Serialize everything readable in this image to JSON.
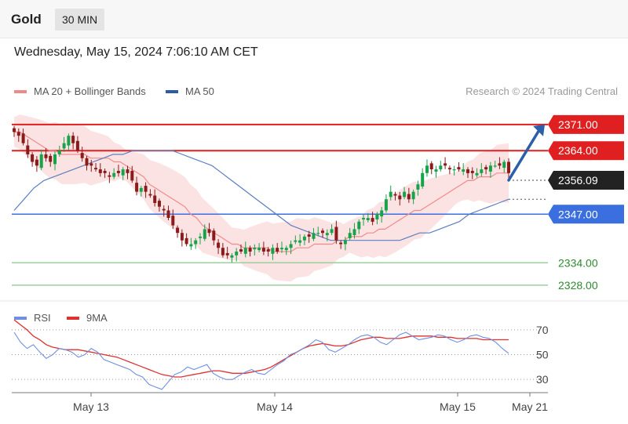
{
  "header": {
    "instrument": "Gold",
    "interval": "30 MIN"
  },
  "timestamp": "Wednesday, May 15, 2024 7:06:10 AM CET",
  "legend": {
    "ma20": {
      "label": "MA 20 + Bollinger Bands",
      "color": "#f08a8a"
    },
    "ma50": {
      "label": "MA 50",
      "color": "#2f5aa8"
    }
  },
  "credit": "Research © 2024 Trading Central",
  "rsi_legend": {
    "rsi": {
      "label": "RSI",
      "color": "#6f8fe0"
    },
    "ma9": {
      "label": "9MA",
      "color": "#e03030"
    }
  },
  "colors": {
    "up": "#16a34a",
    "down": "#8b1a1a",
    "resistance": "#e02020",
    "support": "#3b6fe0",
    "target": "#9ccf9c",
    "arrow": "#2d5fa8"
  },
  "chart_data": [
    {
      "type": "candlestick",
      "x_tick_labels": [
        "May 13",
        "May 14",
        "May 15",
        "May 21"
      ],
      "levels": [
        {
          "label": "2371.00",
          "value": 2371,
          "kind": "resistance"
        },
        {
          "label": "2364.00",
          "value": 2364,
          "kind": "resistance"
        },
        {
          "label": "2356.09",
          "value": 2356.09,
          "kind": "current"
        },
        {
          "label": "2347.00",
          "value": 2347,
          "kind": "pivot"
        },
        {
          "label": "2334.00",
          "value": 2334,
          "kind": "target"
        },
        {
          "label": "2328.00",
          "value": 2328,
          "kind": "target"
        }
      ],
      "close": [
        2369,
        2368,
        2366,
        2363,
        2361,
        2360,
        2363,
        2362,
        2361,
        2363,
        2364,
        2366,
        2368,
        2366,
        2364,
        2362,
        2360,
        2360,
        2359,
        2358,
        2358,
        2357,
        2358,
        2358,
        2359,
        2358,
        2356,
        2353,
        2354,
        2353,
        2352,
        2350,
        2349,
        2348,
        2346,
        2344,
        2342,
        2340,
        2339,
        2339,
        2340,
        2341,
        2343,
        2342,
        2340,
        2338,
        2336,
        2336,
        2336,
        2337,
        2337,
        2338,
        2337,
        2338,
        2338,
        2337,
        2337,
        2338,
        2337,
        2338,
        2338,
        2339,
        2340,
        2340,
        2341,
        2341,
        2342,
        2342,
        2342,
        2342,
        2343,
        2340,
        2339,
        2340,
        2342,
        2343,
        2345,
        2346,
        2346,
        2345,
        2347,
        2348,
        2351,
        2353,
        2352,
        2351,
        2353,
        2351,
        2353,
        2355,
        2358,
        2360,
        2359,
        2359,
        2360,
        2360,
        2359,
        2359,
        2359,
        2359,
        2358,
        2358,
        2358,
        2359,
        2359,
        2360,
        2360,
        2360,
        2361,
        2358
      ],
      "ma20": [
        2369,
        2369,
        2368,
        2367,
        2366,
        2365,
        2364,
        2364,
        2363,
        2363,
        2363,
        2363,
        2363,
        2362,
        2362,
        2362,
        2362,
        2361,
        2361,
        2360,
        2359,
        2358,
        2357,
        2355,
        2354,
        2353,
        2352,
        2351,
        2350,
        2349,
        2347,
        2346,
        2344,
        2343,
        2342,
        2341,
        2340,
        2339,
        2339,
        2338,
        2338,
        2338,
        2338,
        2338,
        2337,
        2337,
        2337,
        2337,
        2338,
        2338,
        2338,
        2339,
        2339,
        2339,
        2339,
        2340,
        2340,
        2341,
        2341,
        2341,
        2342,
        2342,
        2343,
        2343,
        2344,
        2345,
        2346,
        2347,
        2348,
        2348,
        2349,
        2350,
        2351,
        2352,
        2353,
        2354,
        2355,
        2356,
        2356,
        2357,
        2357,
        2357,
        2358,
        2358,
        2358
      ],
      "ma50": [
        2348,
        2351,
        2354,
        2356,
        2357,
        2358,
        2359,
        2360,
        2361,
        2362,
        2363,
        2363,
        2364,
        2364,
        2364,
        2364,
        2364,
        2363,
        2362,
        2361,
        2360,
        2358,
        2356,
        2354,
        2352,
        2350,
        2348,
        2346,
        2344,
        2343,
        2342,
        2341,
        2340,
        2340,
        2340,
        2340,
        2340,
        2340,
        2340,
        2340,
        2341,
        2342,
        2342,
        2343,
        2344,
        2345,
        2347,
        2348,
        2349,
        2350,
        2351
      ],
      "ylim": [
        2324,
        2376
      ]
    },
    {
      "type": "line",
      "name": "RSI",
      "y_tick_labels": [
        "70",
        "50",
        "30"
      ],
      "ylim": [
        20,
        80
      ],
      "rsi": [
        68,
        60,
        55,
        58,
        52,
        47,
        50,
        55,
        54,
        52,
        48,
        50,
        55,
        52,
        46,
        44,
        42,
        40,
        38,
        34,
        32,
        26,
        24,
        22,
        28,
        34,
        36,
        40,
        38,
        40,
        42,
        35,
        32,
        30,
        30,
        33,
        36,
        38,
        35,
        34,
        38,
        42,
        45,
        50,
        52,
        55,
        58,
        62,
        60,
        54,
        52,
        55,
        58,
        62,
        65,
        66,
        64,
        60,
        58,
        62,
        66,
        68,
        65,
        62,
        63,
        64,
        66,
        65,
        62,
        60,
        62,
        65,
        66,
        64,
        63,
        60,
        55,
        51
      ],
      "ma9": [
        78,
        74,
        70,
        65,
        62,
        58,
        56,
        55,
        54,
        54,
        54,
        53,
        52,
        51,
        50,
        49,
        48,
        46,
        44,
        42,
        40,
        38,
        36,
        34,
        33,
        32,
        32,
        33,
        34,
        35,
        36,
        37,
        37,
        36,
        35,
        35,
        35,
        36,
        37,
        38,
        40,
        43,
        46,
        49,
        52,
        55,
        57,
        58,
        59,
        58,
        57,
        57,
        58,
        60,
        62,
        63,
        64,
        64,
        63,
        63,
        63,
        64,
        65,
        65,
        65,
        65,
        64,
        64,
        64,
        63,
        63,
        63,
        63,
        62,
        62,
        62,
        62,
        62
      ]
    }
  ]
}
